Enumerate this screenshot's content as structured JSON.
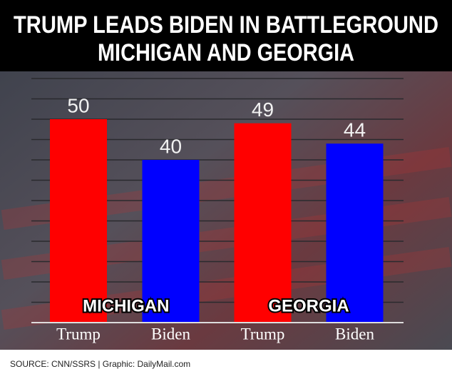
{
  "chart_data": {
    "type": "bar",
    "title": [
      "TRUMP LEADS BIDEN IN BATTLEGROUND",
      "MICHIGAN AND GEORGIA"
    ],
    "categories": [
      "Trump",
      "Biden",
      "Trump",
      "Biden"
    ],
    "values": [
      50,
      40,
      49,
      44
    ],
    "colors": [
      "#ff0000",
      "#0000ff",
      "#ff0000",
      "#0000ff"
    ],
    "groups": [
      "MICHIGAN",
      "GEORGIA"
    ],
    "ylim": [
      0,
      60
    ],
    "yticks": [
      0,
      5,
      10,
      15,
      20,
      25,
      30,
      35,
      40,
      45,
      50,
      55,
      60
    ],
    "grid": true,
    "source": "SOURCE: CNN/SSRS |  Graphic: DailyMail.com"
  }
}
